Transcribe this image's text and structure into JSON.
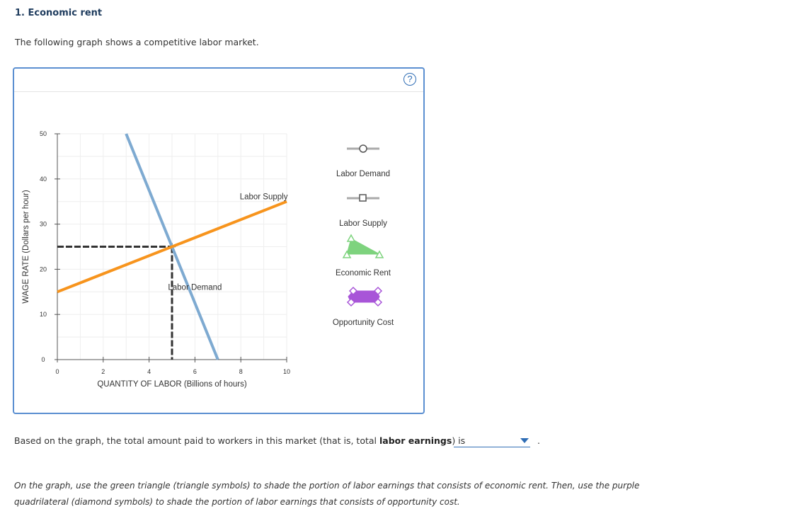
{
  "question": {
    "title": "1. Economic rent",
    "intro": "The following graph shows a competitive labor market.",
    "answer_prefix": "Based on the graph, the total amount paid to workers in this market (that is, total ",
    "answer_bold": "labor earnings",
    "answer_suffix": ") is",
    "period": ".",
    "dropdown_value": "",
    "instructions_line1": "On the graph, use the green triangle (triangle symbols) to shade the portion of labor earnings that consists of economic rent. Then, use the purple",
    "instructions_line2": "quadrilateral (diamond symbols) to shade the portion of labor earnings that consists of opportunity cost."
  },
  "help_label": "?",
  "palette": {
    "labor_demand": "Labor Demand",
    "labor_supply": "Labor Supply",
    "economic_rent": "Economic Rent",
    "opportunity_cost": "Opportunity Cost"
  },
  "colors": {
    "demand": "#7eaad1",
    "supply": "#f7941d",
    "economic_rent": "#7ed37e",
    "opportunity_cost": "#a855d8",
    "guide": "#333333",
    "accent": "#2f6db5"
  },
  "chart_data": {
    "type": "line",
    "xlabel": "QUANTITY OF LABOR (Billions of hours)",
    "ylabel": "WAGE RATE (Dollars per hour)",
    "xlim": [
      0,
      10
    ],
    "ylim": [
      0,
      50
    ],
    "x_ticks": [
      0,
      2,
      4,
      6,
      8,
      10
    ],
    "y_ticks": [
      0,
      10,
      20,
      30,
      40,
      50
    ],
    "grid": true,
    "series": [
      {
        "name": "Labor Demand",
        "label": "Labor Demand",
        "points": [
          [
            3,
            50
          ],
          [
            7,
            0
          ]
        ],
        "label_at": [
          6,
          15
        ]
      },
      {
        "name": "Labor Supply",
        "label": "Labor Supply",
        "points": [
          [
            0,
            15
          ],
          [
            10,
            35
          ]
        ],
        "label_at": [
          9,
          35
        ]
      }
    ],
    "equilibrium": {
      "x": 5,
      "y": 25
    }
  }
}
